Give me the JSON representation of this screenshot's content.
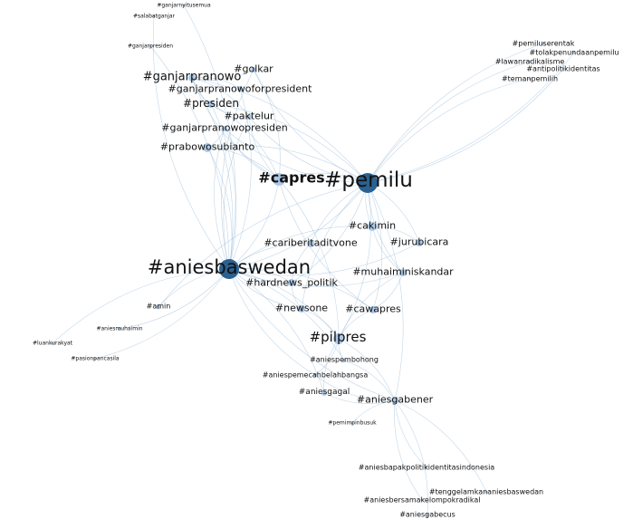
{
  "colors": {
    "hub": "#2a6190",
    "node": "#aac8e6",
    "edge": "#8fb4d6",
    "label": "#111111",
    "background": "#ffffff"
  },
  "nodes": [
    {
      "id": "pemilu",
      "label": "#pemilu"
    },
    {
      "id": "aniesbaswedan",
      "label": "#aniesbaswedan"
    },
    {
      "id": "capres",
      "label": "#capres"
    },
    {
      "id": "pilpres",
      "label": "#pilpres"
    },
    {
      "id": "ganjarpranowo",
      "label": "#ganjarpranowo"
    },
    {
      "id": "golkar",
      "label": "#golkar"
    },
    {
      "id": "ganjarpranowoforpresident",
      "label": "#ganjarpranowoforpresident"
    },
    {
      "id": "presiden",
      "label": "#presiden"
    },
    {
      "id": "paktelur",
      "label": "#paktelur"
    },
    {
      "id": "ganjarpranowopresiden",
      "label": "#ganjarpranowopresiden"
    },
    {
      "id": "prabowosubianto",
      "label": "#prabowosubianto"
    },
    {
      "id": "cakimin",
      "label": "#cakimin"
    },
    {
      "id": "jurubicara",
      "label": "#jurubicara"
    },
    {
      "id": "cariberitaditvone",
      "label": "#cariberitaditvone"
    },
    {
      "id": "muhaiminiskandar",
      "label": "#muhaiminiskandar"
    },
    {
      "id": "hardnews_politik",
      "label": "#hardnews_politik"
    },
    {
      "id": "newsone",
      "label": "#newsone"
    },
    {
      "id": "cawapres",
      "label": "#cawapres"
    },
    {
      "id": "aniesgabener",
      "label": "#aniesgabener"
    },
    {
      "id": "aniesgagal",
      "label": "#aniesgagal"
    },
    {
      "id": "aniespembohong",
      "label": "#aniespembohong"
    },
    {
      "id": "aniespemecahbelahbangsa",
      "label": "#aniespemecahbelahbangsa"
    },
    {
      "id": "amin",
      "label": "#amin"
    },
    {
      "id": "aniesmuhaimin",
      "label": "#aniesmuhaimin"
    },
    {
      "id": "luankurakyat",
      "label": "#luankurakyat"
    },
    {
      "id": "pasionpancasila",
      "label": "#pasionpancasila"
    },
    {
      "id": "ganjarnyitusemua",
      "label": "#ganjarnyitusemua"
    },
    {
      "id": "salabatganjar",
      "label": "#salabatganjar"
    },
    {
      "id": "ganjarpresiden",
      "label": "#ganjarpresiden"
    },
    {
      "id": "pemiluserentak",
      "label": "#pemiluserentak"
    },
    {
      "id": "tolakpenundaanpemilu",
      "label": "#tolakpenundaanpemilu"
    },
    {
      "id": "lawanradikalisme",
      "label": "#lawanradikalisme"
    },
    {
      "id": "antipolitikidentitas",
      "label": "#antipolitikidentitas"
    },
    {
      "id": "temanpemilih",
      "label": "#temanpemilih"
    },
    {
      "id": "pemimpinbusuk",
      "label": "#pemimpinbusuk"
    },
    {
      "id": "aniesbapakpolitikidentitasindonesia",
      "label": "#aniesbapakpolitikidentitasindonesia"
    },
    {
      "id": "tenggelamkananiesbaswedan",
      "label": "#tenggelamkananiesbaswedan"
    },
    {
      "id": "aniesbersamakelompokradikal",
      "label": "#aniesbersamakelompokradikal"
    },
    {
      "id": "aniesgabecus",
      "label": "#aniesgabecus"
    }
  ],
  "edges": [
    [
      "pemilu",
      "aniesbaswedan"
    ],
    [
      "pemilu",
      "capres"
    ],
    [
      "pemilu",
      "pilpres"
    ],
    [
      "pemilu",
      "cakimin"
    ],
    [
      "pemilu",
      "jurubicara"
    ],
    [
      "pemilu",
      "muhaiminiskandar"
    ],
    [
      "pemilu",
      "cawapres"
    ],
    [
      "pemilu",
      "newsone"
    ],
    [
      "pemilu",
      "hardnews_politik"
    ],
    [
      "pemilu",
      "cariberitaditvone"
    ],
    [
      "pemilu",
      "aniesgabener"
    ],
    [
      "pemilu",
      "presiden"
    ],
    [
      "pemilu",
      "golkar"
    ],
    [
      "pemilu",
      "ganjarpranowo"
    ],
    [
      "pemilu",
      "paktelur"
    ],
    [
      "pemilu",
      "prabowosubianto"
    ],
    [
      "pemilu",
      "pemiluserentak"
    ],
    [
      "pemilu",
      "tolakpenundaanpemilu"
    ],
    [
      "pemilu",
      "lawanradikalisme"
    ],
    [
      "pemilu",
      "antipolitikidentitas"
    ],
    [
      "pemilu",
      "temanpemilih"
    ],
    [
      "pemilu",
      "amin"
    ],
    [
      "pemilu",
      "ganjarpranowopresiden"
    ],
    [
      "aniesbaswedan",
      "capres"
    ],
    [
      "aniesbaswedan",
      "pilpres"
    ],
    [
      "aniesbaswedan",
      "ganjarpranowo"
    ],
    [
      "aniesbaswedan",
      "golkar"
    ],
    [
      "aniesbaswedan",
      "presiden"
    ],
    [
      "aniesbaswedan",
      "paktelur"
    ],
    [
      "aniesbaswedan",
      "ganjarpranowoforpresident"
    ],
    [
      "aniesbaswedan",
      "ganjarpranowopresiden"
    ],
    [
      "aniesbaswedan",
      "prabowosubianto"
    ],
    [
      "aniesbaswedan",
      "cakimin"
    ],
    [
      "aniesbaswedan",
      "jurubicara"
    ],
    [
      "aniesbaswedan",
      "cariberitaditvone"
    ],
    [
      "aniesbaswedan",
      "muhaiminiskandar"
    ],
    [
      "aniesbaswedan",
      "hardnews_politik"
    ],
    [
      "aniesbaswedan",
      "newsone"
    ],
    [
      "aniesbaswedan",
      "cawapres"
    ],
    [
      "aniesbaswedan",
      "aniesgabener"
    ],
    [
      "aniesbaswedan",
      "aniesgagal"
    ],
    [
      "aniesbaswedan",
      "amin"
    ],
    [
      "aniesbaswedan",
      "aniesmuhaimin"
    ],
    [
      "aniesbaswedan",
      "luankurakyat"
    ],
    [
      "aniesbaswedan",
      "pasionpancasila"
    ],
    [
      "aniesbaswedan",
      "ganjarnyitusemua"
    ],
    [
      "aniesbaswedan",
      "salabatganjar"
    ],
    [
      "aniesbaswedan",
      "ganjarpresiden"
    ],
    [
      "aniesbaswedan",
      "aniespembohong"
    ],
    [
      "aniesbaswedan",
      "aniespemecahbelahbangsa"
    ],
    [
      "capres",
      "ganjarpranowo"
    ],
    [
      "capres",
      "presiden"
    ],
    [
      "capres",
      "ganjarpranowopresiden"
    ],
    [
      "capres",
      "prabowosubianto"
    ],
    [
      "capres",
      "pilpres"
    ],
    [
      "capres",
      "cawapres"
    ],
    [
      "capres",
      "paktelur"
    ],
    [
      "capres",
      "golkar"
    ],
    [
      "pilpres",
      "cawapres"
    ],
    [
      "pilpres",
      "newsone"
    ],
    [
      "pilpres",
      "aniesgabener"
    ],
    [
      "pilpres",
      "aniespembohong"
    ],
    [
      "pilpres",
      "aniespemecahbelahbangsa"
    ],
    [
      "pilpres",
      "aniesgagal"
    ],
    [
      "pilpres",
      "muhaiminiskandar"
    ],
    [
      "aniesgabener",
      "aniesbapakpolitikidentitasindonesia"
    ],
    [
      "aniesgabener",
      "tenggelamkananiesbaswedan"
    ],
    [
      "aniesgabener",
      "aniesbersamakelompokradikal"
    ],
    [
      "aniesgabener",
      "aniesgabecus"
    ],
    [
      "aniesgabener",
      "pemimpinbusuk"
    ],
    [
      "aniesgabener",
      "aniesgagal"
    ],
    [
      "aniesgabener",
      "aniespembohong"
    ],
    [
      "aniesgabener",
      "aniespemecahbelahbangsa"
    ],
    [
      "ganjarpranowo",
      "golkar"
    ],
    [
      "ganjarpranowo",
      "ganjarpranowoforpresident"
    ],
    [
      "ganjarpranowo",
      "presiden"
    ],
    [
      "ganjarpranowo",
      "paktelur"
    ],
    [
      "presiden",
      "paktelur"
    ],
    [
      "ganjarpranowopresiden",
      "prabowosubianto"
    ],
    [
      "cakimin",
      "muhaiminiskandar"
    ],
    [
      "cakimin",
      "jurubicara"
    ],
    [
      "cariberitaditvone",
      "hardnews_politik"
    ],
    [
      "newsone",
      "hardnews_politik"
    ],
    [
      "cawapres",
      "muhaiminiskandar"
    ]
  ]
}
